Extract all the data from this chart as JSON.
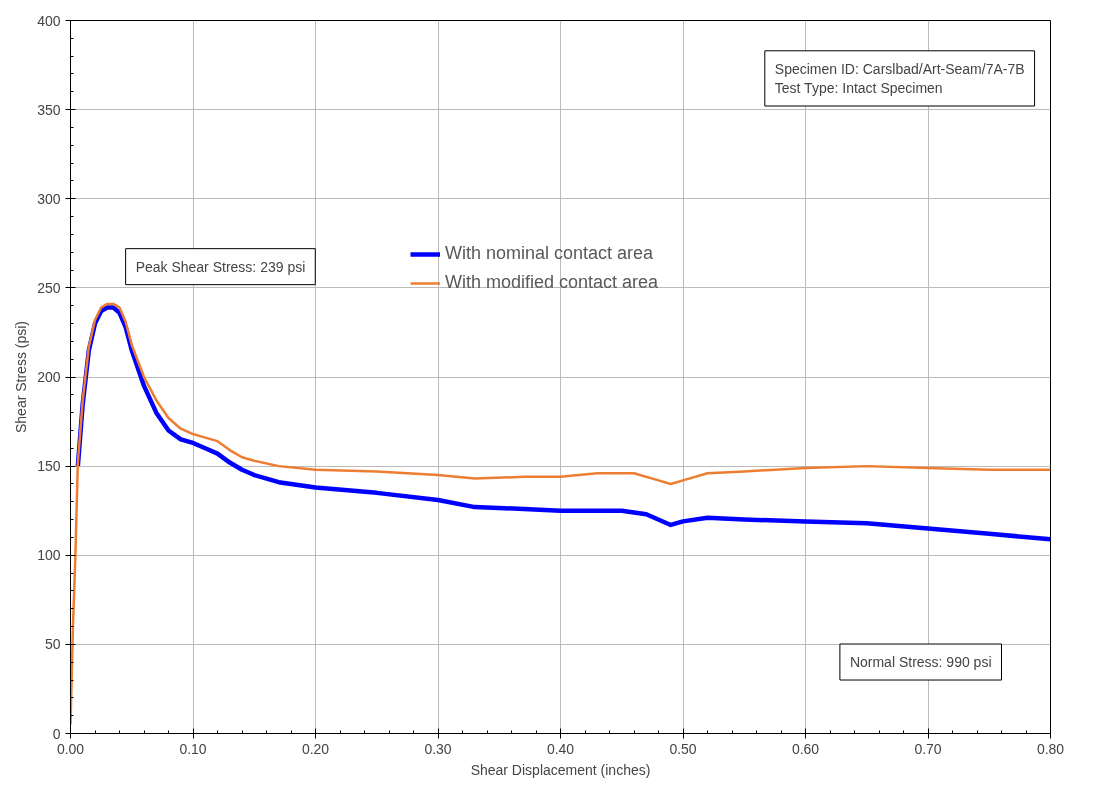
{
  "chart_data": {
    "type": "line",
    "xlabel": "Shear Displacement (inches)",
    "ylabel": "Shear Stress (psi)",
    "xlim": [
      0,
      0.8
    ],
    "ylim": [
      0,
      400
    ],
    "xticks": [
      {
        "value": 0,
        "label": "0.00"
      },
      {
        "value": 0.1,
        "label": "0.10"
      },
      {
        "value": 0.2,
        "label": "0.20"
      },
      {
        "value": 0.3,
        "label": "0.30"
      },
      {
        "value": 0.4,
        "label": "0.40"
      },
      {
        "value": 0.5,
        "label": "0.50"
      },
      {
        "value": 0.6,
        "label": "0.60"
      },
      {
        "value": 0.7,
        "label": "0.70"
      },
      {
        "value": 0.8,
        "label": "0.80"
      }
    ],
    "yticks": [
      0,
      50,
      100,
      150,
      200,
      250,
      300,
      350,
      400
    ],
    "grid": true,
    "legend": "top",
    "marker": "none",
    "line_style": "solid",
    "annotations": [
      "Specimen ID: Carslbad/Art-Seam/7A-7B\nTest Type: Intact Specimen",
      "Peak Shear Stress: 239 psi",
      "Normal Stress: 990 psi"
    ],
    "series": [
      {
        "name": "With nominal contact area",
        "color": "#0000ff",
        "x": [
          0.006,
          0.01,
          0.015,
          0.02,
          0.025,
          0.03,
          0.035,
          0.04,
          0.045,
          0.05,
          0.06,
          0.07,
          0.08,
          0.09,
          0.1,
          0.11,
          0.12,
          0.13,
          0.14,
          0.15,
          0.17,
          0.2,
          0.25,
          0.3,
          0.33,
          0.37,
          0.4,
          0.45,
          0.47,
          0.49,
          0.5,
          0.52,
          0.55,
          0.6,
          0.65,
          0.7,
          0.75,
          0.8
        ],
        "values": [
          150,
          185,
          215,
          230,
          237,
          239,
          239,
          236,
          228,
          215,
          195,
          180,
          170,
          165,
          163,
          160,
          157,
          152,
          148,
          145,
          141,
          138,
          135,
          131,
          127,
          126,
          125,
          125,
          123,
          117,
          119,
          121,
          120,
          119,
          118,
          115,
          112,
          109
        ]
      },
      {
        "name": "With modified contact area",
        "color": "#ed7d31",
        "x": [
          0,
          0.002,
          0.004,
          0.006,
          0.01,
          0.015,
          0.02,
          0.025,
          0.03,
          0.035,
          0.04,
          0.045,
          0.05,
          0.06,
          0.07,
          0.08,
          0.09,
          0.1,
          0.11,
          0.12,
          0.13,
          0.14,
          0.15,
          0.17,
          0.2,
          0.25,
          0.3,
          0.33,
          0.37,
          0.4,
          0.43,
          0.46,
          0.48,
          0.49,
          0.5,
          0.52,
          0.55,
          0.6,
          0.65,
          0.7,
          0.75,
          0.8
        ],
        "values": [
          5,
          60,
          100,
          152,
          187,
          217,
          232,
          239,
          241,
          241,
          239,
          231,
          218,
          200,
          187,
          177,
          171,
          168,
          166,
          164,
          159,
          155,
          153,
          150,
          148,
          147,
          145,
          143,
          144,
          144,
          146,
          146,
          142,
          140,
          142,
          146,
          147,
          149,
          150,
          149,
          148,
          148
        ]
      }
    ]
  }
}
